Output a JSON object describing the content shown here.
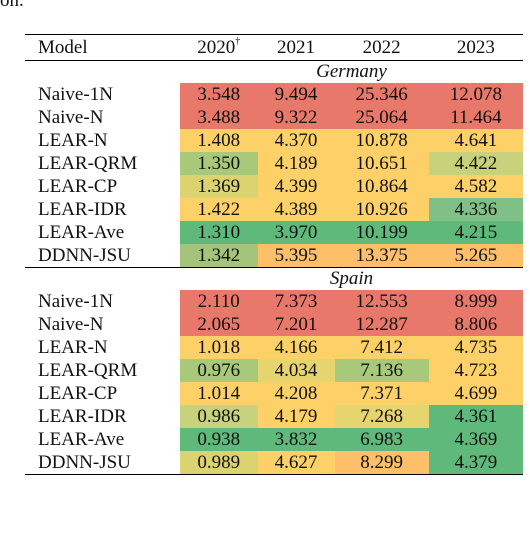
{
  "top_fragment": "on.",
  "table": {
    "headers": [
      "Model",
      "2020",
      "2021",
      "2022",
      "2023"
    ],
    "header_mark": "†",
    "sections": [
      {
        "title": "Germany",
        "rows": [
          {
            "model": "Naive-1N",
            "values": [
              "3.548",
              "9.494",
              "25.346",
              "12.078"
            ],
            "colors": [
              "#e8786a",
              "#e8786a",
              "#e8786a",
              "#e8786a"
            ]
          },
          {
            "model": "Naive-N",
            "values": [
              "3.488",
              "9.322",
              "25.064",
              "11.464"
            ],
            "colors": [
              "#e8786a",
              "#e8786a",
              "#e8786a",
              "#e8786a"
            ]
          },
          {
            "model": "LEAR-N",
            "values": [
              "1.408",
              "4.370",
              "10.878",
              "4.641"
            ],
            "colors": [
              "#fdd168",
              "#fdd168",
              "#fdd168",
              "#fdd168"
            ]
          },
          {
            "model": "LEAR-QRM",
            "values": [
              "1.350",
              "4.189",
              "10.651",
              "4.422"
            ],
            "colors": [
              "#a8c87a",
              "#fdd168",
              "#fdd168",
              "#c8d27c"
            ]
          },
          {
            "model": "LEAR-CP",
            "values": [
              "1.369",
              "4.399",
              "10.864",
              "4.582"
            ],
            "colors": [
              "#dbd370",
              "#fdd168",
              "#fdd168",
              "#fdd168"
            ]
          },
          {
            "model": "LEAR-IDR",
            "values": [
              "1.422",
              "4.389",
              "10.926",
              "4.336"
            ],
            "colors": [
              "#fdd168",
              "#fdd168",
              "#fdd168",
              "#80bf86"
            ]
          },
          {
            "model": "LEAR-Ave",
            "values": [
              "1.310",
              "3.970",
              "10.199",
              "4.215"
            ],
            "colors": [
              "#5fb97a",
              "#5fb97a",
              "#5fb97a",
              "#5fb97a"
            ]
          },
          {
            "model": "DDNN-JSU",
            "values": [
              "1.342",
              "5.395",
              "13.375",
              "5.265"
            ],
            "colors": [
              "#a3c47a",
              "#fdc068",
              "#fdc068",
              "#fdc068"
            ]
          }
        ]
      },
      {
        "title": "Spain",
        "rows": [
          {
            "model": "Naive-1N",
            "values": [
              "2.110",
              "7.373",
              "12.553",
              "8.999"
            ],
            "colors": [
              "#e8786a",
              "#e8786a",
              "#e8786a",
              "#e8786a"
            ]
          },
          {
            "model": "Naive-N",
            "values": [
              "2.065",
              "7.201",
              "12.287",
              "8.806"
            ],
            "colors": [
              "#e8786a",
              "#e8786a",
              "#e8786a",
              "#e8786a"
            ]
          },
          {
            "model": "LEAR-N",
            "values": [
              "1.018",
              "4.166",
              "7.412",
              "4.735"
            ],
            "colors": [
              "#fdd168",
              "#fdd168",
              "#fdd168",
              "#fdd168"
            ]
          },
          {
            "model": "LEAR-QRM",
            "values": [
              "0.976",
              "4.034",
              "7.136",
              "4.723"
            ],
            "colors": [
              "#a8c87a",
              "#e6d46f",
              "#a8c87a",
              "#fdd168"
            ]
          },
          {
            "model": "LEAR-CP",
            "values": [
              "1.014",
              "4.208",
              "7.371",
              "4.699"
            ],
            "colors": [
              "#fdd168",
              "#fdd168",
              "#fdd168",
              "#fdd168"
            ]
          },
          {
            "model": "LEAR-IDR",
            "values": [
              "0.986",
              "4.179",
              "7.268",
              "4.361"
            ],
            "colors": [
              "#c8d27c",
              "#fdd168",
              "#e6d46f",
              "#5fb97a"
            ]
          },
          {
            "model": "LEAR-Ave",
            "values": [
              "0.938",
              "3.832",
              "6.983",
              "4.369"
            ],
            "colors": [
              "#5fb97a",
              "#5fb97a",
              "#5fb97a",
              "#5fb97a"
            ]
          },
          {
            "model": "DDNN-JSU",
            "values": [
              "0.989",
              "4.627",
              "8.299",
              "4.379"
            ],
            "colors": [
              "#dbd370",
              "#fdd168",
              "#fdc068",
              "#5fb97a"
            ]
          }
        ]
      }
    ]
  }
}
